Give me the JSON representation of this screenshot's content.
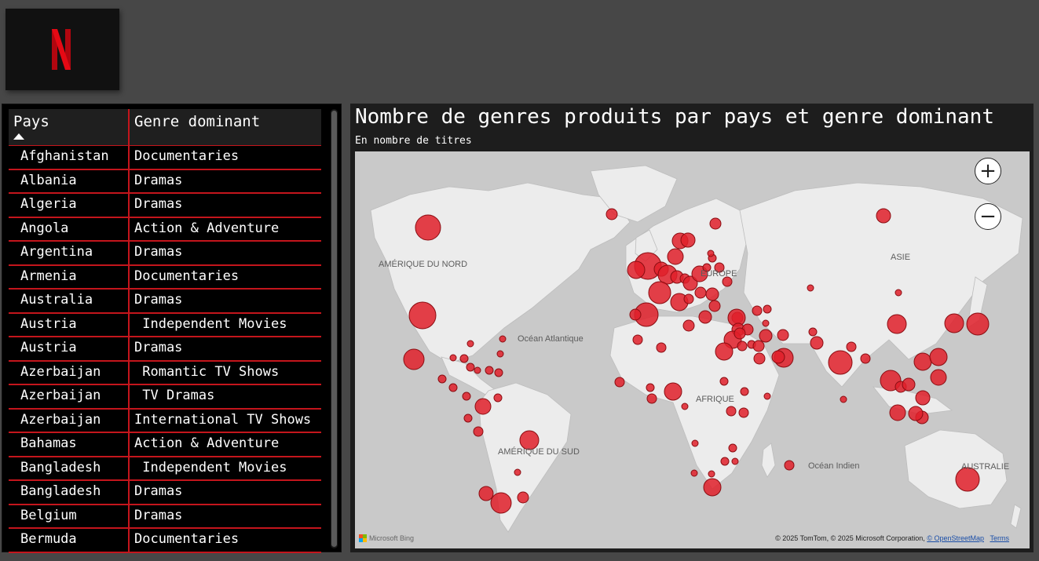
{
  "table": {
    "header": {
      "pays": "Pays",
      "genre": "Genre dominant"
    },
    "rows": [
      {
        "pays": "Afghanistan",
        "genre": "Documentaries"
      },
      {
        "pays": "Albania",
        "genre": "Dramas"
      },
      {
        "pays": "Algeria",
        "genre": "Dramas"
      },
      {
        "pays": "Angola",
        "genre": "Action & Adventure"
      },
      {
        "pays": "Argentina",
        "genre": "Dramas"
      },
      {
        "pays": "Armenia",
        "genre": "Documentaries"
      },
      {
        "pays": "Australia",
        "genre": "Dramas"
      },
      {
        "pays": "Austria",
        "genre": " Independent Movies"
      },
      {
        "pays": "Austria",
        "genre": "Dramas"
      },
      {
        "pays": "Azerbaijan",
        "genre": " Romantic TV Shows"
      },
      {
        "pays": "Azerbaijan",
        "genre": " TV Dramas"
      },
      {
        "pays": "Azerbaijan",
        "genre": "International TV Shows"
      },
      {
        "pays": "Bahamas",
        "genre": "Action & Adventure"
      },
      {
        "pays": "Bangladesh",
        "genre": " Independent Movies"
      },
      {
        "pays": "Bangladesh",
        "genre": "Dramas"
      },
      {
        "pays": "Belgium",
        "genre": "Dramas"
      },
      {
        "pays": "Bermuda",
        "genre": "Documentaries"
      }
    ]
  },
  "map": {
    "title": "Nombre de genres produits par pays et genre dominant",
    "subtitle": "En nombre de titres",
    "labels": {
      "north_america": "AMÉRIQUE DU NORD",
      "south_america": "AMÉRIQUE DU SUD",
      "europe": "EUROPE",
      "africa": "AFRIQUE",
      "asia": "ASIE",
      "australia": "AUSTRALIE",
      "atlantic": "Océan Atlantique",
      "indian": "Océan Indien"
    },
    "zoom_in": "+",
    "zoom_out": "−",
    "attribution": "© 2025 TomTom, © 2025 Microsoft Corporation,",
    "osm": "© OpenStreetMap",
    "terms": "Terms",
    "provider": "Microsoft Bing",
    "bubble_color": "#e0202a",
    "land_color": "#ececec",
    "water_color": "#c9c9c9"
  }
}
